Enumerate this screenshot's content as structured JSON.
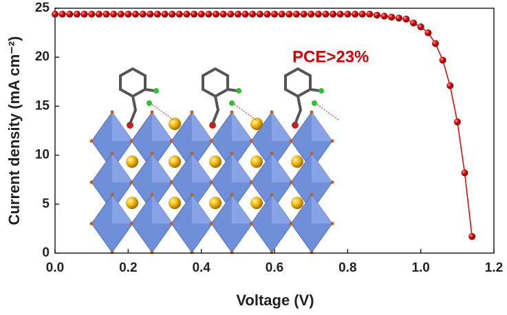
{
  "chart_data": {
    "type": "line",
    "xlabel": "Voltage (V)",
    "ylabel": "Current density (mA cm⁻²)",
    "annotation": "PCE>23%",
    "x": [
      0,
      0.02,
      0.04,
      0.06,
      0.08,
      0.1,
      0.12,
      0.14,
      0.16,
      0.18,
      0.2,
      0.22,
      0.24,
      0.26,
      0.28,
      0.3,
      0.32,
      0.34,
      0.36,
      0.38,
      0.4,
      0.42,
      0.44,
      0.46,
      0.48,
      0.5,
      0.52,
      0.54,
      0.56,
      0.58,
      0.6,
      0.62,
      0.64,
      0.66,
      0.68,
      0.7,
      0.72,
      0.74,
      0.76,
      0.78,
      0.8,
      0.82,
      0.84,
      0.86,
      0.88,
      0.9,
      0.92,
      0.94,
      0.96,
      0.98,
      1.0,
      1.02,
      1.04,
      1.06,
      1.08,
      1.1,
      1.12,
      1.14
    ],
    "series": [
      {
        "color": "#d40000",
        "values": [
          24.4,
          24.4,
          24.4,
          24.4,
          24.4,
          24.4,
          24.4,
          24.4,
          24.4,
          24.4,
          24.4,
          24.4,
          24.4,
          24.4,
          24.4,
          24.4,
          24.4,
          24.4,
          24.4,
          24.4,
          24.4,
          24.4,
          24.4,
          24.4,
          24.4,
          24.4,
          24.4,
          24.4,
          24.4,
          24.4,
          24.4,
          24.4,
          24.4,
          24.4,
          24.4,
          24.4,
          24.4,
          24.4,
          24.4,
          24.4,
          24.4,
          24.4,
          24.4,
          24.4,
          24.3,
          24.2,
          24.1,
          24.0,
          23.9,
          23.5,
          23.1,
          22.5,
          21.4,
          19.7,
          17.1,
          13.4,
          8.2,
          1.7
        ]
      }
    ],
    "xlim": [
      0,
      1.2
    ],
    "xticks": [
      {
        "value": 0,
        "label": "0.0"
      },
      0.2,
      0.4,
      0.6,
      0.8,
      {
        "value": 1,
        "label": "1.0"
      },
      1.2
    ],
    "ylim": [
      0,
      25
    ],
    "yticks": [
      0,
      5,
      10,
      15,
      20,
      25
    ],
    "grid": false
  }
}
